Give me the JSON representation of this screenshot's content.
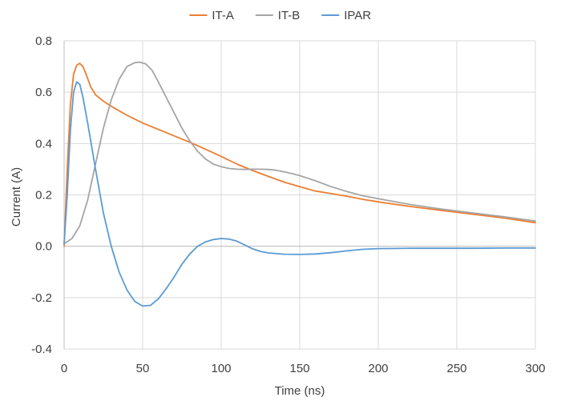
{
  "chart_data": {
    "type": "line",
    "title": "",
    "xlabel": "Time (ns)",
    "ylabel": "Current (A)",
    "xlim": [
      0,
      300
    ],
    "ylim": [
      -0.4,
      0.8
    ],
    "xticks": [
      0,
      50,
      100,
      150,
      200,
      250,
      300
    ],
    "yticks": [
      -0.4,
      -0.2,
      0.0,
      0.2,
      0.4,
      0.6,
      0.8
    ],
    "xtick_labels": [
      "0",
      "50",
      "100",
      "150",
      "200",
      "250",
      "300"
    ],
    "ytick_labels": [
      "-0.4",
      "-0.2",
      "0.0",
      "0.2",
      "0.4",
      "0.6",
      "0.8"
    ],
    "grid": true,
    "legend_position": "top",
    "series": [
      {
        "name": "IT-A",
        "color": "#ED7D31",
        "x": [
          0,
          2,
          4,
          6,
          8,
          10,
          12,
          14,
          17,
          20,
          25,
          30,
          40,
          50,
          60,
          70,
          80,
          90,
          100,
          110,
          120,
          130,
          140,
          150,
          160,
          170,
          180,
          190,
          200,
          220,
          240,
          260,
          280,
          300
        ],
        "y": [
          0.0,
          0.3,
          0.55,
          0.67,
          0.705,
          0.712,
          0.7,
          0.67,
          0.62,
          0.59,
          0.565,
          0.545,
          0.51,
          0.48,
          0.455,
          0.43,
          0.405,
          0.378,
          0.35,
          0.32,
          0.295,
          0.272,
          0.25,
          0.232,
          0.215,
          0.205,
          0.195,
          0.183,
          0.173,
          0.155,
          0.14,
          0.125,
          0.11,
          0.092
        ]
      },
      {
        "name": "IT-B",
        "color": "#A5A5A5",
        "x": [
          0,
          5,
          10,
          15,
          20,
          25,
          30,
          35,
          40,
          45,
          48,
          52,
          56,
          60,
          65,
          70,
          75,
          80,
          85,
          90,
          95,
          100,
          105,
          110,
          115,
          120,
          125,
          130,
          135,
          140,
          145,
          150,
          160,
          170,
          180,
          190,
          200,
          220,
          240,
          260,
          280,
          300
        ],
        "y": [
          0.01,
          0.03,
          0.08,
          0.18,
          0.32,
          0.46,
          0.57,
          0.65,
          0.7,
          0.715,
          0.717,
          0.71,
          0.685,
          0.64,
          0.58,
          0.52,
          0.46,
          0.41,
          0.37,
          0.34,
          0.32,
          0.31,
          0.303,
          0.3,
          0.299,
          0.3,
          0.3,
          0.299,
          0.296,
          0.29,
          0.283,
          0.275,
          0.255,
          0.232,
          0.213,
          0.197,
          0.185,
          0.163,
          0.145,
          0.13,
          0.115,
          0.098
        ]
      },
      {
        "name": "IPAR",
        "color": "#5B9BD5",
        "x": [
          0,
          2,
          4,
          6,
          8,
          10,
          12,
          15,
          20,
          25,
          30,
          35,
          40,
          45,
          50,
          55,
          60,
          65,
          70,
          75,
          80,
          85,
          90,
          95,
          100,
          105,
          110,
          115,
          120,
          125,
          130,
          140,
          150,
          160,
          170,
          180,
          190,
          200,
          220,
          240,
          260,
          280,
          300
        ],
        "y": [
          0.01,
          0.2,
          0.45,
          0.6,
          0.64,
          0.63,
          0.58,
          0.48,
          0.3,
          0.13,
          0.0,
          -0.1,
          -0.17,
          -0.215,
          -0.233,
          -0.23,
          -0.205,
          -0.165,
          -0.12,
          -0.07,
          -0.03,
          0.0,
          0.017,
          0.026,
          0.03,
          0.028,
          0.02,
          0.005,
          -0.01,
          -0.02,
          -0.026,
          -0.031,
          -0.032,
          -0.03,
          -0.025,
          -0.018,
          -0.012,
          -0.009,
          -0.008,
          -0.008,
          -0.008,
          -0.007,
          -0.007
        ]
      }
    ]
  }
}
